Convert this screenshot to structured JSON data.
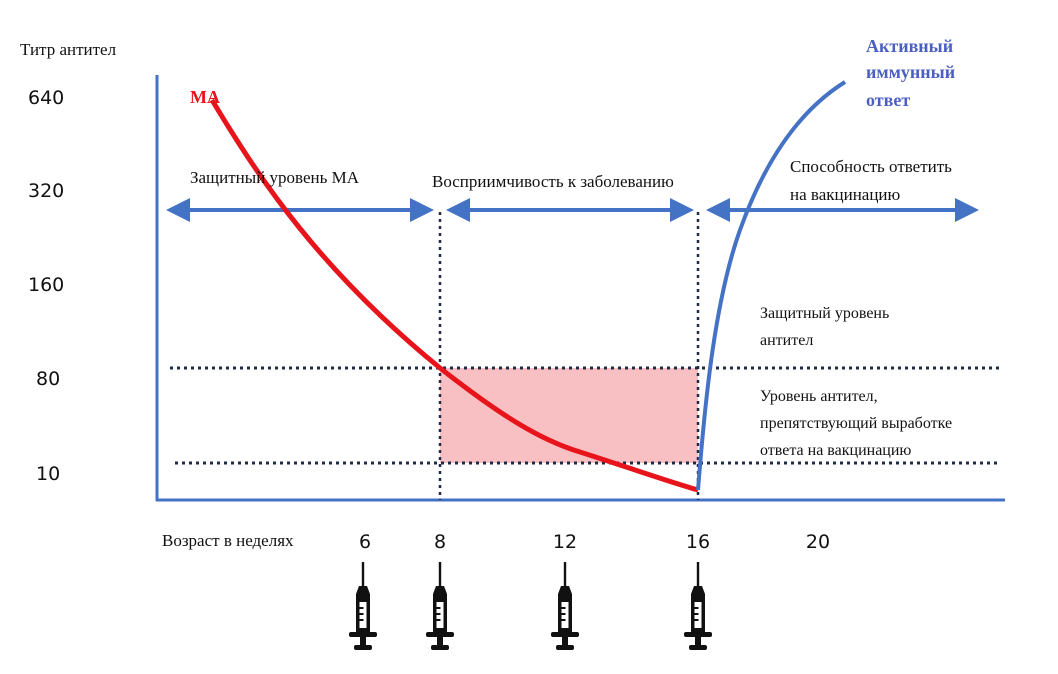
{
  "y_axis": {
    "title": "Титр антител",
    "ticks": [
      "640",
      "320",
      "160",
      "80",
      "10"
    ]
  },
  "x_axis": {
    "title": "Возраст в неделях",
    "ticks": [
      "6",
      "8",
      "12",
      "16",
      "20"
    ]
  },
  "series": {
    "maternal": {
      "label": "МА",
      "color": "#e8141b"
    },
    "active": {
      "label_lines": [
        "Активный",
        "иммунный",
        "ответ"
      ],
      "color": "#4472c4"
    }
  },
  "periods": {
    "protective_ma": "Защитный уровень МА",
    "susceptibility": "Восприимчивость к заболеванию",
    "ability_lines": [
      "Способность ответить",
      "на вакцинацию"
    ]
  },
  "levels": {
    "protective_lines": [
      "Защитный уровень",
      "антител"
    ],
    "interfering_lines": [
      "Уровень антител,",
      "препятствующий выработке",
      "ответа на вакцинацию"
    ]
  },
  "vaccination_weeks": [
    "6",
    "8",
    "12",
    "16"
  ],
  "icons": {
    "vaccination": "syringe-icon"
  },
  "colors": {
    "axis": "#4472c4",
    "arrow": "#4472c4",
    "window_fill": "#f9c0c4",
    "dotted": "#1f2a44"
  }
}
